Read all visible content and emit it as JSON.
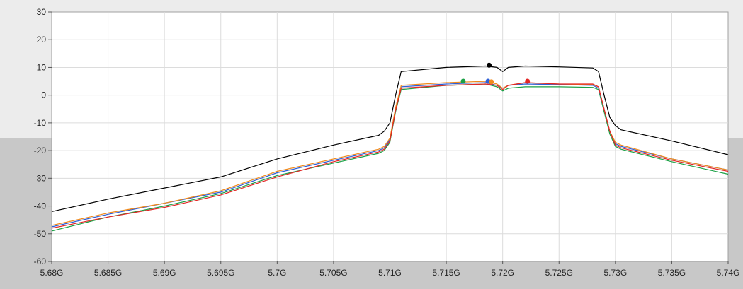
{
  "chart_data": {
    "type": "line",
    "title": "",
    "xlabel": "",
    "ylabel": "",
    "xlim": [
      5.68,
      5.74
    ],
    "ylim": [
      -60,
      30
    ],
    "grid": true,
    "legend": "none",
    "x_ticks": [
      5.68,
      5.685,
      5.69,
      5.695,
      5.7,
      5.705,
      5.71,
      5.715,
      5.72,
      5.725,
      5.73,
      5.735,
      5.74
    ],
    "x_tick_labels": [
      "5.68G",
      "5.685G",
      "5.69G",
      "5.695G",
      "5.7G",
      "5.705G",
      "5.71G",
      "5.715G",
      "5.72G",
      "5.725G",
      "5.73G",
      "5.735G",
      "5.74G"
    ],
    "y_ticks": [
      30,
      20,
      10,
      0,
      -10,
      -20,
      -30,
      -40,
      -50,
      -60
    ],
    "y_tick_labels": [
      "30",
      "20",
      "10",
      "0",
      "-10",
      "-20",
      "-30",
      "-40",
      "-50",
      "-60"
    ],
    "series": [
      {
        "color": "#000000",
        "x": [
          5.68,
          5.685,
          5.69,
          5.695,
          5.7,
          5.705,
          5.709,
          5.7095,
          5.71,
          5.7105,
          5.711,
          5.715,
          5.7185,
          5.7195,
          5.72,
          5.7205,
          5.722,
          5.725,
          5.728,
          5.7285,
          5.729,
          5.7295,
          5.73,
          5.7305,
          5.735,
          5.74
        ],
        "y": [
          -42,
          -37.5,
          -33.5,
          -29.5,
          -23,
          -18,
          -14.5,
          -13,
          -10,
          0,
          8.5,
          10,
          10.5,
          10,
          8.5,
          10,
          10.5,
          10.2,
          9.8,
          8.5,
          0,
          -8,
          -11,
          -12.5,
          -16.5,
          -21.5
        ],
        "marker": {
          "x": 5.7188,
          "y": 10.8
        }
      },
      {
        "color": "#1aa045",
        "x": [
          5.68,
          5.685,
          5.69,
          5.695,
          5.7,
          5.705,
          5.709,
          5.7095,
          5.71,
          5.7105,
          5.711,
          5.715,
          5.7185,
          5.7195,
          5.72,
          5.7205,
          5.722,
          5.725,
          5.728,
          5.7285,
          5.729,
          5.7295,
          5.73,
          5.7305,
          5.735,
          5.74
        ],
        "y": [
          -49,
          -44,
          -40,
          -35.5,
          -29,
          -24.5,
          -21,
          -20,
          -17,
          -6,
          2,
          3.5,
          4,
          3,
          1.5,
          2.5,
          3,
          3,
          2.8,
          2,
          -6,
          -14,
          -18.5,
          -19.5,
          -24,
          -28.5
        ],
        "marker": {
          "x": 5.7165,
          "y": 5
        }
      },
      {
        "color": "#2e5fd6",
        "x": [
          5.68,
          5.685,
          5.69,
          5.695,
          5.7,
          5.705,
          5.709,
          5.7095,
          5.71,
          5.7105,
          5.711,
          5.715,
          5.7185,
          5.7195,
          5.72,
          5.7205,
          5.722,
          5.725,
          5.728,
          5.7285,
          5.729,
          5.7295,
          5.73,
          5.7305,
          5.735,
          5.74
        ],
        "y": [
          -47.5,
          -43,
          -39,
          -35,
          -28,
          -23.5,
          -20,
          -19,
          -16,
          -5,
          3,
          4,
          4.5,
          3.5,
          2.5,
          3.5,
          4,
          3.8,
          3.5,
          2.5,
          -5,
          -13,
          -17.5,
          -18.5,
          -23,
          -27
        ],
        "marker": {
          "x": 5.7187,
          "y": 5
        }
      },
      {
        "color": "#f08a1c",
        "x": [
          5.68,
          5.685,
          5.69,
          5.695,
          5.7,
          5.705,
          5.709,
          5.7095,
          5.71,
          5.7105,
          5.711,
          5.715,
          5.7185,
          5.7195,
          5.72,
          5.7205,
          5.722,
          5.725,
          5.728,
          5.7285,
          5.729,
          5.7295,
          5.73,
          5.7305,
          5.735,
          5.74
        ],
        "y": [
          -47,
          -42.5,
          -39,
          -34.5,
          -27.5,
          -23,
          -19.5,
          -18.5,
          -15.5,
          -4.5,
          3.5,
          4.5,
          5,
          4,
          2.5,
          3.5,
          4.5,
          4,
          3.8,
          3,
          -5,
          -13,
          -17,
          -18,
          -23,
          -27
        ],
        "marker": {
          "x": 5.719,
          "y": 4.8
        }
      },
      {
        "color": "#e32626",
        "x": [
          5.68,
          5.685,
          5.69,
          5.695,
          5.7,
          5.705,
          5.709,
          5.7095,
          5.71,
          5.7105,
          5.711,
          5.715,
          5.7185,
          5.7195,
          5.72,
          5.7205,
          5.722,
          5.725,
          5.728,
          5.7285,
          5.729,
          5.7295,
          5.73,
          5.7305,
          5.735,
          5.74
        ],
        "y": [
          -48,
          -44,
          -40.5,
          -36,
          -29.5,
          -24,
          -20.5,
          -19.5,
          -16.5,
          -5.5,
          2.5,
          3.5,
          4,
          3.5,
          2,
          3.5,
          4.5,
          4,
          4,
          3,
          -5,
          -13,
          -18,
          -19,
          -23.5,
          -27.5
        ],
        "marker": {
          "x": 5.7222,
          "y": 5
        }
      }
    ]
  }
}
